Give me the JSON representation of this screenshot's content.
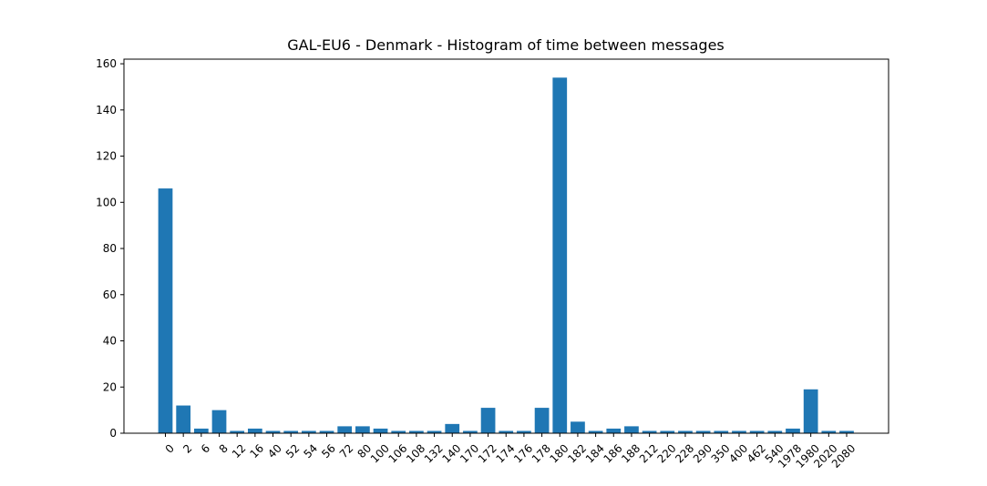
{
  "chart_data": {
    "type": "bar",
    "title": "GAL-EU6 - Denmark - Histogram of time between messages",
    "xlabel": "",
    "ylabel": "",
    "ylim": [
      0,
      162
    ],
    "yticks": [
      0,
      20,
      40,
      60,
      80,
      100,
      120,
      140,
      160
    ],
    "grid": false,
    "categories": [
      "0",
      "2",
      "6",
      "8",
      "12",
      "16",
      "40",
      "52",
      "54",
      "56",
      "72",
      "80",
      "100",
      "106",
      "108",
      "132",
      "140",
      "170",
      "172",
      "174",
      "176",
      "178",
      "180",
      "182",
      "184",
      "186",
      "188",
      "212",
      "220",
      "228",
      "290",
      "350",
      "400",
      "462",
      "540",
      "1978",
      "1980",
      "2020",
      "2080"
    ],
    "values": [
      106,
      12,
      2,
      10,
      1,
      2,
      1,
      1,
      1,
      1,
      3,
      3,
      2,
      1,
      1,
      1,
      4,
      1,
      11,
      1,
      1,
      11,
      154,
      5,
      1,
      2,
      3,
      1,
      1,
      1,
      1,
      1,
      1,
      1,
      1,
      2,
      19,
      1,
      1
    ],
    "colors": {
      "bar": "#1f77b4"
    }
  }
}
